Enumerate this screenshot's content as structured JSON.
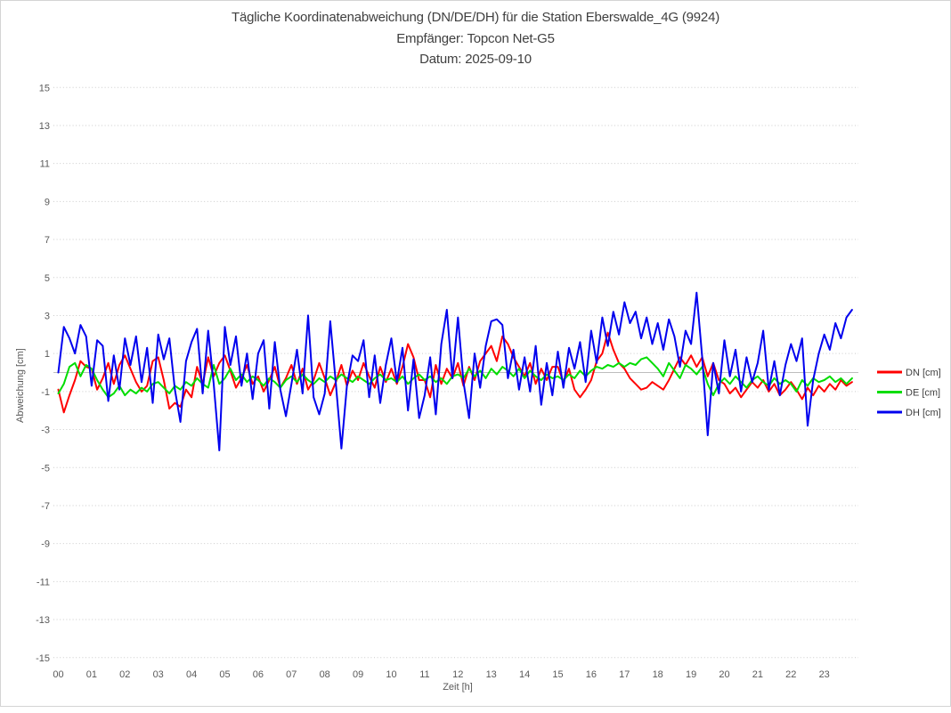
{
  "header": {
    "title": "Tägliche Koordinatenabweichung (DN/DE/DH) für die Station Eberswalde_4G (9924)",
    "receiver_line": "Empfänger: Topcon Net-G5",
    "date_line": "Datum: 2025-09-10"
  },
  "chart_data": {
    "type": "line",
    "title": "Tägliche Koordinatenabweichung (DN/DE/DH) für die Station Eberswalde_4G (9924)",
    "subtitle1": "Empfänger: Topcon Net-G5",
    "subtitle2": "Datum: 2025-09-10",
    "xlabel": "Zeit [h]",
    "ylabel": "Abweichung [cm]",
    "ylim": [
      -15,
      15
    ],
    "ytick_step": 2,
    "x_hour_labels": [
      "00",
      "01",
      "02",
      "03",
      "04",
      "05",
      "06",
      "07",
      "08",
      "09",
      "10",
      "11",
      "12",
      "13",
      "14",
      "15",
      "16",
      "17",
      "18",
      "19",
      "20",
      "21",
      "22",
      "23"
    ],
    "x_range_hours": [
      0,
      24
    ],
    "sample_interval_minutes": 10,
    "grid": {
      "horizontal": "dotted",
      "zero_line": "solid",
      "vertical": "none"
    },
    "legend": {
      "position": "right"
    },
    "colors": {
      "grid": "#cbcbcb",
      "zero_line": "#bdbdbd",
      "axis_text": "#595959",
      "title_text": "#404040",
      "frame_border": "#d4d4d4"
    },
    "series": [
      {
        "name": "DN [cm]",
        "color": "#ff0000",
        "values": [
          -0.9,
          -2.1,
          -1.2,
          -0.4,
          0.6,
          0.3,
          0.2,
          -0.9,
          -0.3,
          0.5,
          -0.6,
          0.4,
          0.9,
          0.2,
          -0.5,
          -1.0,
          -0.7,
          0.6,
          0.8,
          -0.4,
          -1.9,
          -1.6,
          -1.8,
          -0.9,
          -1.3,
          0.3,
          -0.6,
          0.8,
          -0.2,
          0.5,
          0.9,
          0.1,
          -0.8,
          -0.3,
          0.4,
          -0.6,
          -0.2,
          -1.0,
          -0.4,
          0.3,
          -0.8,
          -0.3,
          0.4,
          -0.6,
          0.2,
          -0.9,
          -0.4,
          0.5,
          -0.3,
          -1.2,
          -0.5,
          0.4,
          -0.7,
          0.1,
          -0.4,
          0.5,
          -0.2,
          -0.8,
          0.3,
          -0.5,
          0.2,
          -0.6,
          0.3,
          1.5,
          0.8,
          -0.4,
          -0.4,
          -1.3,
          0.4,
          -0.6,
          0.2,
          -0.3,
          0.5,
          -0.7,
          0.3,
          -0.4,
          0.6,
          1.0,
          1.4,
          0.6,
          1.9,
          1.5,
          0.8,
          0.3,
          -0.2,
          0.5,
          -0.6,
          0.2,
          -0.4,
          0.3,
          0.3,
          -0.5,
          0.2,
          -0.9,
          -1.3,
          -0.9,
          -0.4,
          0.6,
          1.0,
          2.1,
          1.2,
          0.5,
          0.2,
          -0.3,
          -0.6,
          -0.9,
          -0.8,
          -0.5,
          -0.7,
          -0.9,
          -0.4,
          0.2,
          0.8,
          0.4,
          0.9,
          0.3,
          0.8,
          -0.2,
          0.5,
          -0.4,
          -0.6,
          -1.1,
          -0.8,
          -1.3,
          -0.9,
          -0.5,
          -0.8,
          -0.4,
          -1.0,
          -0.6,
          -1.2,
          -0.9,
          -0.5,
          -0.9,
          -1.4,
          -0.8,
          -1.2,
          -0.7,
          -1.0,
          -0.6,
          -0.9,
          -0.4,
          -0.7,
          -0.5
        ]
      },
      {
        "name": "DE [cm]",
        "color": "#00dd00",
        "values": [
          -1.1,
          -0.6,
          0.3,
          0.5,
          -0.2,
          0.4,
          0.2,
          -0.4,
          -0.9,
          -1.3,
          -1.1,
          -0.7,
          -1.2,
          -0.9,
          -1.1,
          -0.8,
          -1.0,
          -0.6,
          -0.5,
          -0.8,
          -1.1,
          -0.7,
          -0.9,
          -0.5,
          -0.7,
          -0.3,
          -0.6,
          -0.8,
          0.4,
          -0.6,
          -0.3,
          0.2,
          -0.4,
          -0.1,
          -0.5,
          -0.2,
          -0.4,
          -0.7,
          -0.3,
          -0.5,
          -0.8,
          -0.4,
          -0.2,
          -0.5,
          -0.1,
          -0.4,
          -0.6,
          -0.3,
          -0.5,
          -0.2,
          -0.4,
          -0.1,
          -0.3,
          -0.5,
          -0.2,
          -0.4,
          -0.6,
          -0.3,
          -0.1,
          -0.4,
          -0.3,
          -0.5,
          -0.2,
          -0.6,
          -0.3,
          -0.1,
          -0.4,
          -0.2,
          -0.5,
          -0.3,
          -0.6,
          -0.2,
          -0.1,
          -0.3,
          0.2,
          -0.2,
          0.1,
          -0.3,
          0.2,
          -0.1,
          0.3,
          0.1,
          -0.2,
          0.2,
          -0.3,
          0.1,
          -0.2,
          -0.4,
          -0.1,
          -0.3,
          -0.2,
          -0.4,
          -0.1,
          -0.3,
          0.1,
          -0.2,
          0.1,
          0.3,
          0.2,
          0.4,
          0.3,
          0.5,
          0.3,
          0.5,
          0.4,
          0.7,
          0.8,
          0.5,
          0.2,
          -0.2,
          0.5,
          0.1,
          -0.3,
          0.4,
          0.2,
          -0.1,
          0.3,
          -0.6,
          -1.2,
          -0.6,
          -0.3,
          -0.6,
          -0.2,
          -0.5,
          -0.8,
          -0.4,
          -0.2,
          -0.5,
          -0.7,
          -0.3,
          -0.6,
          -0.4,
          -0.6,
          -1.0,
          -0.4,
          -0.7,
          -0.3,
          -0.5,
          -0.4,
          -0.2,
          -0.5,
          -0.3,
          -0.6,
          -0.3
        ]
      },
      {
        "name": "DH [cm]",
        "color": "#0000ee",
        "values": [
          0.0,
          2.4,
          1.8,
          1.0,
          2.5,
          1.9,
          -0.7,
          1.7,
          1.4,
          -1.5,
          0.9,
          -0.9,
          1.8,
          0.4,
          1.9,
          -0.5,
          1.3,
          -1.6,
          2.0,
          0.7,
          1.8,
          -0.9,
          -2.6,
          0.6,
          1.6,
          2.3,
          -1.1,
          2.2,
          -0.6,
          -4.1,
          2.4,
          0.4,
          1.9,
          -0.7,
          1.0,
          -1.4,
          1.0,
          1.7,
          -1.9,
          1.6,
          -0.9,
          -2.3,
          -0.6,
          1.2,
          -1.1,
          3.0,
          -1.3,
          -2.2,
          -1.1,
          2.7,
          -0.6,
          -4.0,
          -0.7,
          0.9,
          0.6,
          1.7,
          -1.3,
          0.9,
          -1.6,
          0.4,
          1.8,
          -0.5,
          1.3,
          -2.0,
          0.7,
          -2.4,
          -1.2,
          0.8,
          -2.2,
          1.5,
          3.3,
          -0.3,
          2.9,
          -0.5,
          -2.4,
          1.0,
          -0.8,
          1.4,
          2.7,
          2.8,
          2.5,
          -0.3,
          1.2,
          -0.9,
          0.8,
          -1.0,
          1.4,
          -1.7,
          0.5,
          -1.2,
          1.1,
          -0.8,
          1.3,
          0.2,
          1.6,
          -0.5,
          2.2,
          0.5,
          2.9,
          1.4,
          3.2,
          2.0,
          3.7,
          2.6,
          3.2,
          1.8,
          2.9,
          1.5,
          2.6,
          1.2,
          2.8,
          1.9,
          0.3,
          2.2,
          1.5,
          4.2,
          0.8,
          -3.3,
          0.5,
          -1.1,
          1.7,
          -0.2,
          1.2,
          -1.0,
          0.8,
          -0.5,
          0.5,
          2.2,
          -0.9,
          0.6,
          -1.2,
          0.4,
          1.5,
          0.6,
          1.8,
          -2.8,
          -0.4,
          1.0,
          2.0,
          1.2,
          2.6,
          1.8,
          2.9,
          3.3
        ]
      }
    ]
  }
}
